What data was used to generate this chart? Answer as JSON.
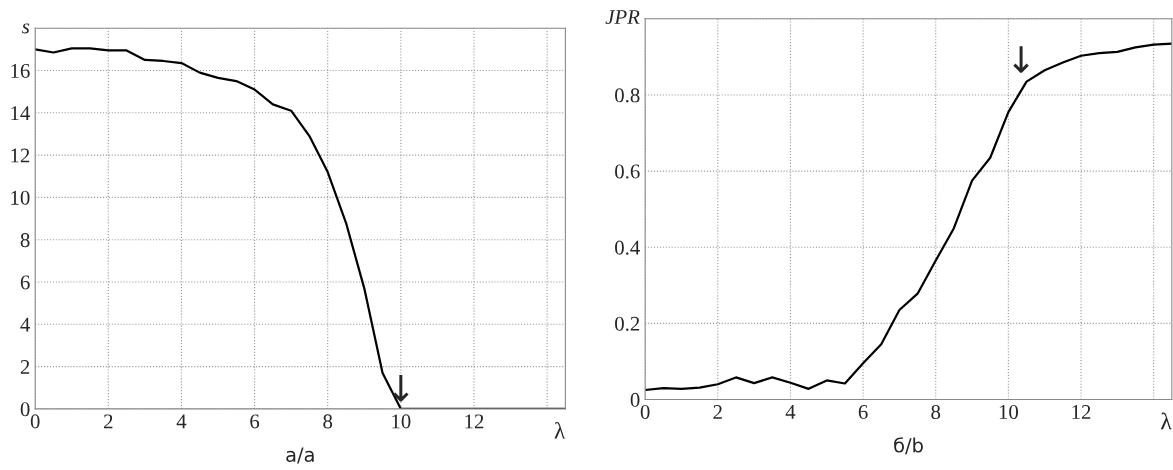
{
  "chart_data": [
    {
      "type": "line",
      "title": "а/a",
      "xlabel": "λ",
      "ylabel": "s",
      "x": [
        0,
        0.5,
        1,
        1.5,
        2,
        2.5,
        3,
        3.5,
        4,
        4.5,
        5,
        5.5,
        6,
        6.5,
        7,
        7.5,
        8,
        8.5,
        9,
        9.5,
        10,
        10.5,
        11,
        11.5,
        12,
        12.5,
        13,
        13.5,
        14,
        14.5
      ],
      "series": [
        {
          "color": "#000000",
          "values": [
            17.0,
            16.85,
            17.05,
            17.05,
            16.95,
            16.95,
            16.5,
            16.45,
            16.35,
            15.9,
            15.65,
            15.5,
            15.1,
            14.4,
            14.1,
            12.9,
            11.2,
            8.8,
            5.7,
            1.7,
            0,
            0,
            0,
            0,
            0,
            0,
            0,
            0,
            0,
            0
          ]
        }
      ],
      "xlim": [
        0,
        14.5
      ],
      "ylim": [
        0,
        18
      ],
      "xticks": [
        0,
        2,
        4,
        6,
        8,
        10,
        12,
        {
          "value": 14,
          "label": null
        }
      ],
      "yticks": [
        0,
        2,
        4,
        6,
        8,
        10,
        12,
        14,
        16,
        {
          "value": 18,
          "label": null
        }
      ],
      "grid": true,
      "marker": "none",
      "line_style": "solid",
      "annotations": [
        {
          "text": "↓",
          "x": 10,
          "y": 0
        }
      ]
    },
    {
      "type": "line",
      "title": "б/b",
      "xlabel": "λ",
      "ylabel": "JPR",
      "x": [
        0,
        0.5,
        1,
        1.5,
        2,
        2.5,
        3,
        3.5,
        4,
        4.5,
        5,
        5.5,
        6,
        6.5,
        7,
        7.5,
        8,
        8.5,
        9,
        9.5,
        10,
        10.5,
        11,
        11.5,
        12,
        12.5,
        13,
        13.5,
        14,
        14.5
      ],
      "series": [
        {
          "color": "#000000",
          "values": [
            0.025,
            0.03,
            0.028,
            0.031,
            0.04,
            0.058,
            0.043,
            0.058,
            0.044,
            0.028,
            0.05,
            0.042,
            0.095,
            0.145,
            0.235,
            0.278,
            0.365,
            0.45,
            0.575,
            0.635,
            0.755,
            0.835,
            0.865,
            0.885,
            0.903,
            0.91,
            0.913,
            0.925,
            0.932,
            0.935
          ]
        }
      ],
      "xlim": [
        0,
        14.5
      ],
      "ylim": [
        0,
        1.0
      ],
      "xticks": [
        0,
        2,
        4,
        6,
        8,
        10,
        12,
        {
          "value": 14,
          "label": null
        }
      ],
      "yticks": [
        0,
        0.2,
        0.4,
        0.6,
        0.8,
        {
          "value": 1.0,
          "label": null
        }
      ],
      "grid": true,
      "marker": "none",
      "line_style": "solid",
      "annotations": [
        {
          "text": "↓",
          "x": 10.35,
          "y": 0.81
        }
      ]
    }
  ]
}
